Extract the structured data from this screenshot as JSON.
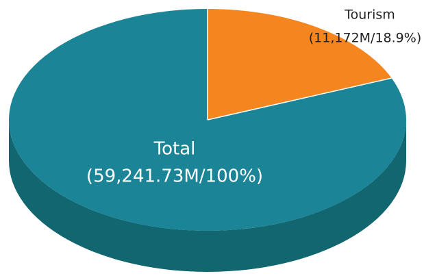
{
  "chart_data": {
    "type": "pie3d",
    "categories": [
      "Tourism",
      "Total"
    ],
    "values": [
      11172,
      59241.73
    ],
    "value_labels": [
      "(11,172M/18.9%)",
      "(59,241.73M/100%)"
    ],
    "colors": [
      "#f5851f",
      "#1b8496"
    ],
    "side_color": "#12666f"
  }
}
